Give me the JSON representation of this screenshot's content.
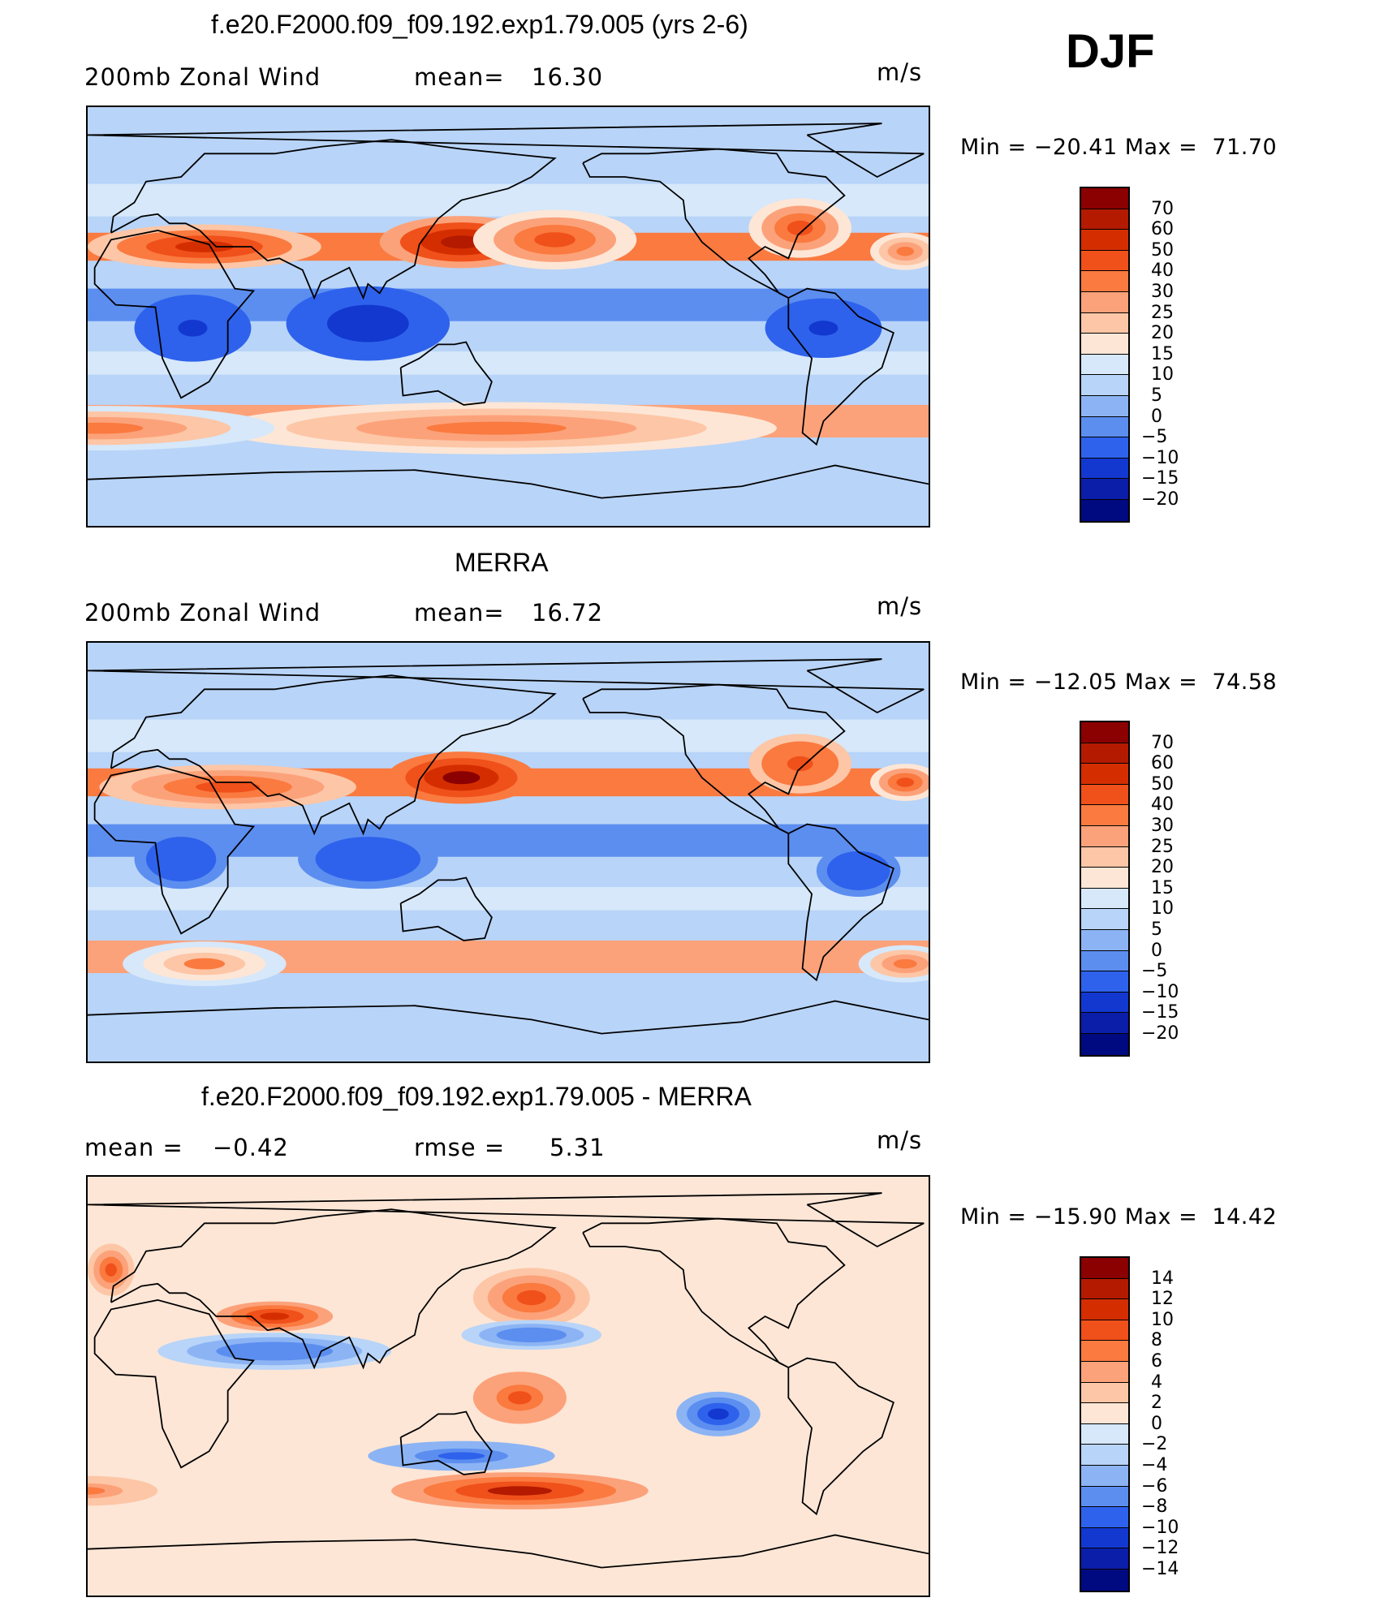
{
  "figure": {
    "season": "DJF",
    "units": "m/s"
  },
  "panels": [
    {
      "title": "f.e20.F2000.f09_f09.192.exp1.79.005 (yrs 2-6)",
      "left_label": "200mb Zonal Wind",
      "middle_label": "mean=",
      "middle_value": "16.30",
      "units": "m/s",
      "stats": "Min = −20.41 Max =  71.70",
      "colorbar": {
        "ticks": [
          "70",
          "60",
          "50",
          "40",
          "30",
          "25",
          "20",
          "15",
          "10",
          "5",
          "0",
          "−5",
          "−10",
          "−15",
          "−20"
        ],
        "colors": [
          "#8b0000",
          "#b31a00",
          "#d42e00",
          "#f0501a",
          "#fa7a40",
          "#fca27a",
          "#fdc6a6",
          "#fde6d6",
          "#d6e8fa",
          "#b8d4f8",
          "#8cb4f4",
          "#5c8ef0",
          "#2e62ec",
          "#1238d0",
          "#0a1eaa",
          "#000a80"
        ]
      }
    },
    {
      "title": "MERRA",
      "left_label": "200mb Zonal Wind",
      "middle_label": "mean=",
      "middle_value": "16.72",
      "units": "m/s",
      "stats": "Min = −12.05 Max =  74.58",
      "colorbar": {
        "ticks": [
          "70",
          "60",
          "50",
          "40",
          "30",
          "25",
          "20",
          "15",
          "10",
          "5",
          "0",
          "−5",
          "−10",
          "−15",
          "−20"
        ],
        "colors": [
          "#8b0000",
          "#b31a00",
          "#d42e00",
          "#f0501a",
          "#fa7a40",
          "#fca27a",
          "#fdc6a6",
          "#fde6d6",
          "#d6e8fa",
          "#b8d4f8",
          "#8cb4f4",
          "#5c8ef0",
          "#2e62ec",
          "#1238d0",
          "#0a1eaa",
          "#000a80"
        ]
      }
    },
    {
      "title": "f.e20.F2000.f09_f09.192.exp1.79.005 - MERRA",
      "left_label": "mean =",
      "left_value": "−0.42",
      "middle_label": "rmse =",
      "middle_value": "5.31",
      "units": "m/s",
      "stats": "Min = −15.90 Max =  14.42",
      "colorbar": {
        "ticks": [
          "14",
          "12",
          "10",
          "8",
          "6",
          "4",
          "2",
          "0",
          "−2",
          "−4",
          "−6",
          "−8",
          "−10",
          "−12",
          "−14"
        ],
        "colors": [
          "#8b0000",
          "#b31a00",
          "#d42e00",
          "#f0501a",
          "#fa7a40",
          "#fca27a",
          "#fdc6a6",
          "#fde6d6",
          "#d6e8fa",
          "#b8d4f8",
          "#8cb4f4",
          "#5c8ef0",
          "#2e62ec",
          "#1238d0",
          "#0a1eaa",
          "#000a80"
        ]
      }
    }
  ],
  "chart_data": [
    {
      "type": "heatmap",
      "title": "f.e20.F2000.f09_f09.192.exp1.79.005 (yrs 2-6)",
      "variable": "200mb Zonal Wind",
      "mean": 16.3,
      "units": "m/s",
      "min": -20.41,
      "max": 71.7,
      "levels": [
        -20,
        -15,
        -10,
        -5,
        0,
        5,
        10,
        15,
        20,
        25,
        30,
        40,
        50,
        60,
        70
      ],
      "features": [
        {
          "lon": 140,
          "lat": 32,
          "value": 65,
          "rx": 35,
          "ry": 7
        },
        {
          "lon": 30,
          "lat": 30,
          "value": 50,
          "rx": 50,
          "ry": 6
        },
        {
          "lon": 180,
          "lat": 33,
          "value": 40,
          "rx": 35,
          "ry": 8
        },
        {
          "lon": -75,
          "lat": 38,
          "value": 42,
          "rx": 22,
          "ry": 8
        },
        {
          "lon": -30,
          "lat": 28,
          "value": 35,
          "rx": 15,
          "ry": 5
        },
        {
          "lon": 100,
          "lat": -3,
          "value": -15,
          "rx": 35,
          "ry": 10
        },
        {
          "lon": 25,
          "lat": -5,
          "value": -12,
          "rx": 25,
          "ry": 9
        },
        {
          "lon": -65,
          "lat": -5,
          "value": -12,
          "rx": 25,
          "ry": 8
        },
        {
          "lon": 155,
          "lat": -48,
          "value": 35,
          "rx": 120,
          "ry": 7
        },
        {
          "lon": -15,
          "lat": -48,
          "value": 32,
          "rx": 75,
          "ry": 6
        }
      ]
    },
    {
      "type": "heatmap",
      "title": "MERRA",
      "variable": "200mb Zonal Wind",
      "mean": 16.72,
      "units": "m/s",
      "min": -12.05,
      "max": 74.58,
      "levels": [
        -20,
        -15,
        -10,
        -5,
        0,
        5,
        10,
        15,
        20,
        25,
        30,
        40,
        50,
        60,
        70
      ],
      "features": [
        {
          "lon": 140,
          "lat": 32,
          "value": 70,
          "rx": 32,
          "ry": 7
        },
        {
          "lon": 40,
          "lat": 28,
          "value": 45,
          "rx": 55,
          "ry": 6
        },
        {
          "lon": -75,
          "lat": 38,
          "value": 48,
          "rx": 22,
          "ry": 8
        },
        {
          "lon": -30,
          "lat": 30,
          "value": 40,
          "rx": 15,
          "ry": 5
        },
        {
          "lon": 100,
          "lat": -3,
          "value": -10,
          "rx": 30,
          "ry": 8
        },
        {
          "lon": 20,
          "lat": -3,
          "value": -10,
          "rx": 20,
          "ry": 8
        },
        {
          "lon": -50,
          "lat": -8,
          "value": -8,
          "rx": 18,
          "ry": 7
        },
        {
          "lon": 30,
          "lat": -48,
          "value": 30,
          "rx": 35,
          "ry": 6
        },
        {
          "lon": -30,
          "lat": -48,
          "value": 32,
          "rx": 20,
          "ry": 5
        }
      ]
    },
    {
      "type": "heatmap",
      "title": "f.e20.F2000.f09_f09.192.exp1.79.005 - MERRA",
      "variable": "200mb Zonal Wind difference",
      "mean": -0.42,
      "rmse": 5.31,
      "units": "m/s",
      "min": -15.9,
      "max": 14.42,
      "levels": [
        -14,
        -12,
        -10,
        -8,
        -6,
        -4,
        -2,
        0,
        2,
        4,
        6,
        8,
        10,
        12,
        14
      ],
      "features": [
        {
          "lon": 170,
          "lat": 38,
          "value": 8,
          "rx": 25,
          "ry": 8
        },
        {
          "lon": 60,
          "lat": 30,
          "value": 10,
          "rx": 25,
          "ry": 4
        },
        {
          "lon": -10,
          "lat": 50,
          "value": 8,
          "rx": 10,
          "ry": 7
        },
        {
          "lon": 170,
          "lat": 22,
          "value": -8,
          "rx": 30,
          "ry": 4
        },
        {
          "lon": 60,
          "lat": 15,
          "value": -8,
          "rx": 50,
          "ry": 5
        },
        {
          "lon": 165,
          "lat": -5,
          "value": 9,
          "rx": 20,
          "ry": 7
        },
        {
          "lon": -110,
          "lat": -12,
          "value": -12,
          "rx": 18,
          "ry": 6
        },
        {
          "lon": 140,
          "lat": -30,
          "value": -9,
          "rx": 40,
          "ry": 4
        },
        {
          "lon": 165,
          "lat": -45,
          "value": 12,
          "rx": 55,
          "ry": 5
        },
        {
          "lon": -20,
          "lat": -45,
          "value": 6,
          "rx": 30,
          "ry": 4
        }
      ]
    }
  ]
}
